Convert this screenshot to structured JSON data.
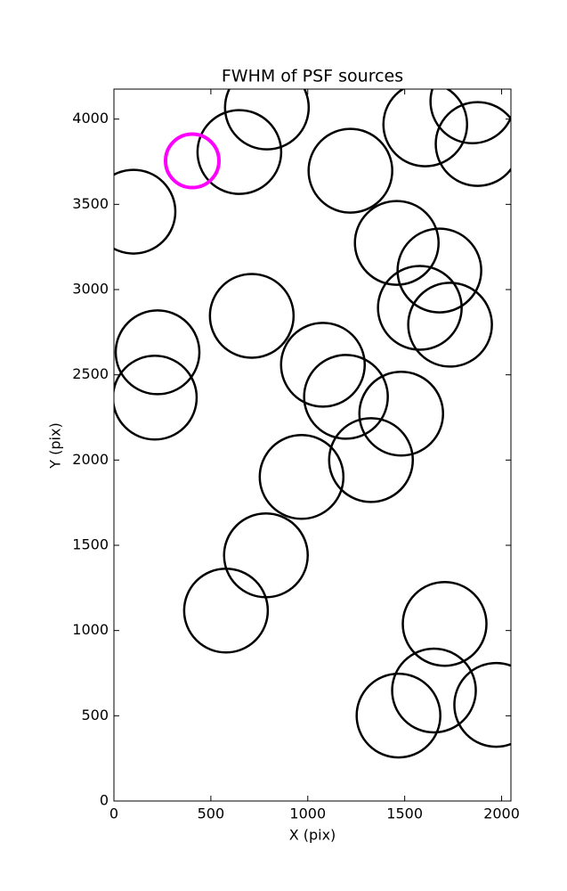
{
  "chart_data": {
    "type": "scatter",
    "title": "FWHM of PSF sources",
    "x_label": "X (pix)",
    "y_label": "Y (pix)",
    "xlim": [
      0,
      2048
    ],
    "ylim": [
      0,
      4176
    ],
    "xticks": [
      0,
      500,
      1000,
      1500,
      2000
    ],
    "yticks": [
      0,
      500,
      1000,
      1500,
      2000,
      2500,
      3000,
      3500,
      4000
    ],
    "series": [
      {
        "color": "#000000",
        "x": [
          789,
          647,
          101,
          1220,
          1606,
          1849,
          1876,
          1459,
          1679,
          1578,
          1734,
          711,
          225,
          211,
          1078,
          1197,
          1482,
          1326,
          968,
          784,
          578,
          1706,
          1651,
          1468,
          1972
        ],
        "values": [
          4068,
          3807,
          3457,
          3697,
          3969,
          4104,
          3854,
          3274,
          3112,
          2893,
          2794,
          2846,
          2632,
          2366,
          2559,
          2371,
          2272,
          2000,
          1901,
          1441,
          1117,
          1039,
          648,
          501,
          564
        ]
      },
      {
        "color": "#ff00ff",
        "x": [
          404
        ],
        "values": [
          3755
        ]
      }
    ]
  }
}
